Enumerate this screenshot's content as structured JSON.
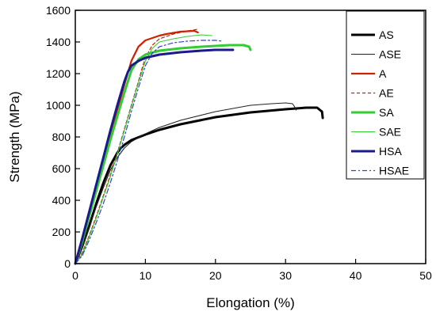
{
  "chart_data": {
    "type": "line",
    "title": "",
    "xlabel": "Elongation (%)",
    "ylabel": "Strength (MPa)",
    "xlim": [
      0,
      50
    ],
    "ylim": [
      0,
      1600
    ],
    "xticks": [
      0,
      10,
      20,
      30,
      40,
      50
    ],
    "yticks": [
      0,
      200,
      400,
      600,
      800,
      1000,
      1200,
      1400,
      1600
    ],
    "grid": false,
    "legend_position": "top-right",
    "series": [
      {
        "name": "AS",
        "color": "#000000",
        "style": "solid-thick",
        "x": [
          0,
          1,
          2,
          3,
          4,
          5,
          6,
          6.5,
          7,
          8,
          10,
          12,
          15,
          20,
          25,
          30,
          33,
          34.5,
          35.2,
          35.3
        ],
        "y": [
          0,
          110,
          240,
          380,
          510,
          620,
          700,
          730,
          750,
          780,
          815,
          845,
          880,
          925,
          955,
          975,
          985,
          985,
          960,
          920
        ]
      },
      {
        "name": "ASE",
        "color": "#222222",
        "style": "solid-thin",
        "x": [
          0,
          1,
          2,
          3,
          4,
          5,
          6,
          7,
          8,
          10,
          12,
          15,
          20,
          25,
          28,
          30,
          31,
          31.3,
          31.5
        ],
        "y": [
          0,
          100,
          230,
          360,
          480,
          590,
          670,
          730,
          770,
          820,
          860,
          905,
          960,
          1000,
          1010,
          1015,
          1010,
          990,
          970
        ]
      },
      {
        "name": "A",
        "color": "#cc2200",
        "style": "solid",
        "x": [
          0,
          1,
          2,
          3,
          4,
          5,
          6,
          7,
          8,
          9,
          10,
          11,
          12,
          13,
          15,
          17,
          17.5
        ],
        "y": [
          0,
          150,
          310,
          480,
          650,
          810,
          970,
          1130,
          1280,
          1370,
          1410,
          1425,
          1440,
          1450,
          1465,
          1470,
          1460
        ]
      },
      {
        "name": "AE",
        "color": "#cc2200",
        "style": "dashed",
        "x": [
          0,
          1,
          2,
          3,
          4,
          5,
          6,
          7,
          8,
          9,
          9.5,
          10,
          11,
          12,
          14,
          16,
          17.5
        ],
        "y": [
          0,
          70,
          180,
          300,
          430,
          560,
          700,
          850,
          1000,
          1150,
          1230,
          1300,
          1380,
          1420,
          1450,
          1470,
          1480
        ]
      },
      {
        "name": "SA",
        "color": "#33cc33",
        "style": "solid-thick",
        "x": [
          0,
          1,
          2,
          3,
          4,
          5,
          6,
          7,
          8,
          9,
          10,
          12,
          15,
          18,
          20,
          22,
          24,
          24.8,
          25
        ],
        "y": [
          0,
          140,
          300,
          460,
          620,
          780,
          930,
          1080,
          1220,
          1290,
          1320,
          1345,
          1360,
          1370,
          1375,
          1380,
          1380,
          1370,
          1350
        ]
      },
      {
        "name": "SAE",
        "color": "#33cc33",
        "style": "solid-thin",
        "x": [
          0,
          1,
          2,
          3,
          4,
          5,
          6,
          7,
          8,
          9,
          10,
          11,
          12,
          14,
          16,
          18,
          19.5
        ],
        "y": [
          0,
          60,
          170,
          290,
          420,
          550,
          690,
          840,
          990,
          1140,
          1280,
          1360,
          1400,
          1420,
          1435,
          1445,
          1440
        ]
      },
      {
        "name": "HSA",
        "color": "#1a1a8c",
        "style": "solid-thick",
        "x": [
          0,
          1,
          2,
          3,
          4,
          5,
          6,
          7,
          7.5,
          8,
          9,
          10,
          12,
          15,
          18,
          20,
          22.5
        ],
        "y": [
          0,
          160,
          330,
          500,
          670,
          840,
          1000,
          1150,
          1210,
          1250,
          1280,
          1300,
          1320,
          1335,
          1345,
          1350,
          1350
        ]
      },
      {
        "name": "HSAE",
        "color": "#3344cc",
        "style": "dashdot",
        "x": [
          0,
          1,
          2,
          3,
          4,
          5,
          6,
          7,
          8,
          9,
          10,
          11,
          12,
          14,
          16,
          18,
          20,
          21
        ],
        "y": [
          0,
          50,
          150,
          260,
          380,
          510,
          650,
          800,
          960,
          1110,
          1250,
          1330,
          1370,
          1395,
          1405,
          1410,
          1410,
          1405
        ]
      }
    ]
  }
}
